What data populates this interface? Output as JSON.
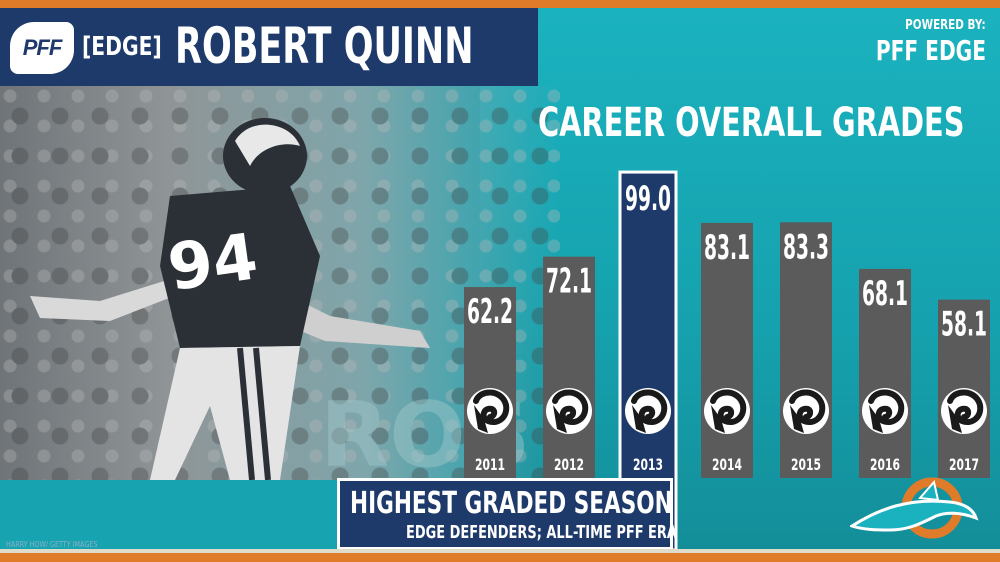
{
  "header": {
    "logo_text": "PFF",
    "position_tag": "[EDGE]",
    "player_name": "ROBERT QUINN",
    "powered_by_label": "POWERED BY:",
    "powered_by_brand": "PFF EDGE"
  },
  "photo_credit": "HARRY HOW/ GETTY IMAGES",
  "highlight": {
    "title": "HIGHEST GRADED SEASON",
    "subtitle": "EDGE DEFENDERS; ALL-TIME PFF ERA"
  },
  "colors": {
    "navy": "#1e3a6b",
    "teal": "#17a3b0",
    "orange": "#e07b2a",
    "bar_gray": "#5b5b5b",
    "bar_highlight": "#1e3a6b",
    "text": "#ffffff"
  },
  "icons": {
    "team_logo": "rams-horn-icon",
    "team_logo_right": "dolphins-logo-icon"
  },
  "chart_data": {
    "type": "bar",
    "title": "CAREER OVERALL GRADES",
    "categories": [
      "2011",
      "2012",
      "2013",
      "2014",
      "2015",
      "2016",
      "2017"
    ],
    "values": [
      62.2,
      72.1,
      99.0,
      83.1,
      83.3,
      68.1,
      58.1
    ],
    "value_labels": [
      "62.2",
      "72.1",
      "99.0",
      "83.1",
      "83.3",
      "68.1",
      "58.1"
    ],
    "highlight_category": "2013",
    "xlabel": "",
    "ylabel": "",
    "grid": false,
    "legend": "none"
  }
}
